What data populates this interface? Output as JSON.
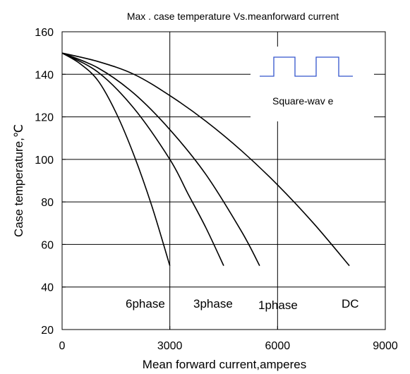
{
  "chart_data": {
    "type": "line",
    "title": "Max . case temperature Vs.meanforward current",
    "xlabel": "Mean forward current,amperes",
    "ylabel": "Case temperature,℃",
    "xlim": [
      0,
      9000
    ],
    "ylim": [
      20,
      160
    ],
    "xticks": [
      "0",
      "3000",
      "6000",
      "9000"
    ],
    "yticks": [
      "20",
      "40",
      "60",
      "80",
      "100",
      "120",
      "140",
      "160"
    ],
    "grid": {
      "horizontal": true,
      "vertical_at": [
        3000,
        6000
      ]
    },
    "series": [
      {
        "name": "6phase",
        "x": [
          0,
          500,
          1000,
          1500,
          2000,
          2500,
          3000
        ],
        "y": [
          150,
          145,
          137,
          122,
          102,
          78,
          50
        ]
      },
      {
        "name": "3phase",
        "x": [
          0,
          1000,
          2000,
          3000,
          3500,
          4000,
          4500
        ],
        "y": [
          150,
          141,
          124,
          100,
          84,
          68,
          50
        ]
      },
      {
        "name": "1phase",
        "x": [
          0,
          1000,
          2000,
          3000,
          4000,
          5000,
          5500
        ],
        "y": [
          150,
          143,
          131,
          114,
          93,
          66,
          50
        ]
      },
      {
        "name": "DC",
        "x": [
          0,
          1000,
          2000,
          3000,
          4000,
          5000,
          6000,
          7000,
          8000
        ],
        "y": [
          150,
          146,
          140,
          130,
          118,
          104,
          88,
          70,
          50
        ]
      }
    ],
    "inset": {
      "label": "Square-wav e"
    }
  }
}
